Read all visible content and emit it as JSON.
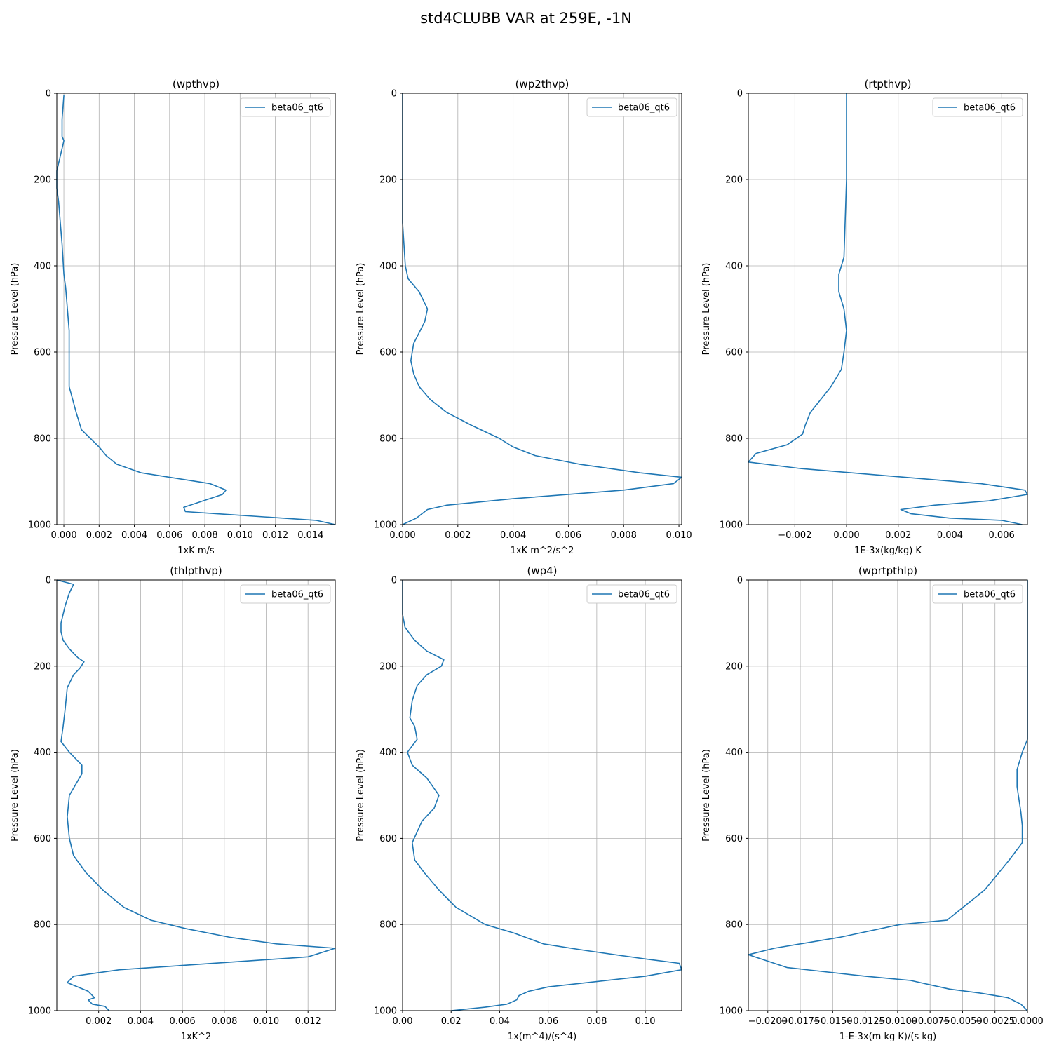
{
  "figure_title": "std4CLUBB VAR at 259E, -1N",
  "colors": {
    "line": "#1f77b4",
    "grid": "#b0b0b0",
    "axis": "#000000"
  },
  "chart_data": [
    {
      "type": "line",
      "title": "(wpthvp)",
      "xlabel": "1xK m/s",
      "ylabel": "Pressure Level (hPa)",
      "xlim": [
        -0.0004,
        0.0154
      ],
      "ylim": [
        1000,
        0
      ],
      "xticks": [
        0.0,
        0.002,
        0.004,
        0.006,
        0.008,
        0.01,
        0.012,
        0.014
      ],
      "xtick_labels": [
        "0.000",
        "0.002",
        "0.004",
        "0.006",
        "0.008",
        "0.010",
        "0.012",
        "0.014"
      ],
      "yticks": [
        0,
        200,
        400,
        600,
        800,
        1000
      ],
      "ytick_labels": [
        "0",
        "200",
        "400",
        "600",
        "800",
        "1000"
      ],
      "grid": true,
      "legend_position": "top-right",
      "series": [
        {
          "name": "beta06_qt6",
          "x": [
            0.0,
            -0.0001,
            -0.0001,
            0.0,
            -0.0004,
            -0.0004,
            -0.0003,
            -0.0001,
            0.0,
            0.0001,
            0.0002,
            0.0003,
            0.0003,
            0.0003,
            0.0003,
            0.0005,
            0.0007,
            0.001,
            0.002,
            0.0024,
            0.003,
            0.0044,
            0.0083,
            0.0092,
            0.009,
            0.0068,
            0.0069,
            0.0087,
            0.0143,
            0.0154
          ],
          "y": [
            5,
            60,
            100,
            110,
            180,
            220,
            250,
            350,
            420,
            450,
            500,
            550,
            600,
            650,
            680,
            710,
            740,
            780,
            820,
            840,
            860,
            880,
            905,
            920,
            930,
            960,
            970,
            975,
            990,
            1000
          ]
        }
      ]
    },
    {
      "type": "line",
      "title": "(wp2thvp)",
      "xlabel": "1xK m^2/s^2",
      "ylabel": "Pressure Level (hPa)",
      "xlim": [
        0.0,
        0.0101
      ],
      "ylim": [
        1000,
        0
      ],
      "xticks": [
        0.0,
        0.002,
        0.004,
        0.006,
        0.008,
        0.01
      ],
      "xtick_labels": [
        "0.000",
        "0.002",
        "0.004",
        "0.006",
        "0.008",
        "0.010"
      ],
      "yticks": [
        0,
        200,
        400,
        600,
        800,
        1000
      ],
      "ytick_labels": [
        "0",
        "200",
        "400",
        "600",
        "800",
        "1000"
      ],
      "grid": true,
      "legend_position": "top-right",
      "series": [
        {
          "name": "beta06_qt6",
          "x": [
            0.0,
            0.0,
            0.0,
            0.0001,
            0.0002,
            0.0006,
            0.0009,
            0.0008,
            0.0004,
            0.0003,
            0.0004,
            0.0006,
            0.001,
            0.0016,
            0.0025,
            0.0035,
            0.004,
            0.0048,
            0.0064,
            0.0086,
            0.0101,
            0.0098,
            0.008,
            0.004,
            0.0016,
            0.0009,
            0.0005,
            0.0
          ],
          "y": [
            0,
            200,
            300,
            400,
            430,
            460,
            500,
            530,
            580,
            620,
            650,
            680,
            710,
            740,
            770,
            800,
            820,
            840,
            860,
            880,
            890,
            905,
            920,
            940,
            955,
            965,
            985,
            1000
          ]
        }
      ]
    },
    {
      "type": "line",
      "title": "(rtpthvp)",
      "xlabel": "1E-3x(kg/kg) K",
      "ylabel": "Pressure Level (hPa)",
      "xlim": [
        -0.0038,
        0.007
      ],
      "ylim": [
        1000,
        0
      ],
      "xticks": [
        -0.002,
        0.0,
        0.002,
        0.004,
        0.006
      ],
      "xtick_labels": [
        "−0.002",
        "0.000",
        "0.002",
        "0.004",
        "0.006"
      ],
      "yticks": [
        0,
        200,
        400,
        600,
        800,
        1000
      ],
      "ytick_labels": [
        "0",
        "200",
        "400",
        "600",
        "800",
        "1000"
      ],
      "grid": true,
      "legend_position": "top-right",
      "series": [
        {
          "name": "beta06_qt6",
          "x": [
            0.0,
            0.0,
            0.0,
            -0.0001,
            -0.0003,
            -0.0003,
            -0.0001,
            0.0,
            -0.0001,
            -0.0002,
            -0.0006,
            -0.001,
            -0.0014,
            -0.0016,
            -0.0017,
            -0.0023,
            -0.0035,
            -0.0038,
            -0.0018,
            0.0052,
            0.0069,
            0.007,
            0.0055,
            0.0034,
            0.0021,
            0.0025,
            0.004,
            0.006,
            0.0068
          ],
          "y": [
            0,
            100,
            200,
            380,
            420,
            460,
            500,
            550,
            600,
            640,
            680,
            710,
            740,
            770,
            790,
            815,
            835,
            855,
            870,
            905,
            920,
            930,
            945,
            955,
            965,
            975,
            985,
            990,
            1000
          ]
        }
      ]
    },
    {
      "type": "line",
      "title": "(thlpthvp)",
      "xlabel": "1xK^2",
      "ylabel": "Pressure Level (hPa)",
      "xlim": [
        0.0,
        0.0133
      ],
      "ylim": [
        1000,
        0
      ],
      "xticks": [
        0.002,
        0.004,
        0.006,
        0.008,
        0.01,
        0.012
      ],
      "xtick_labels": [
        "0.002",
        "0.004",
        "0.006",
        "0.008",
        "0.010",
        "0.012"
      ],
      "yticks": [
        0,
        200,
        400,
        600,
        800,
        1000
      ],
      "ytick_labels": [
        "0",
        "200",
        "400",
        "600",
        "800",
        "1000"
      ],
      "grid": true,
      "legend_position": "top-right",
      "series": [
        {
          "name": "beta06_qt6",
          "x": [
            0.0,
            0.0008,
            0.0006,
            0.0004,
            0.0002,
            0.0002,
            0.0003,
            0.0006,
            0.001,
            0.0013,
            0.0011,
            0.0008,
            0.0005,
            0.0004,
            0.0003,
            0.0002,
            0.0006,
            0.0012,
            0.0012,
            0.0006,
            0.0005,
            0.0006,
            0.0008,
            0.0014,
            0.0022,
            0.0032,
            0.0045,
            0.0062,
            0.0083,
            0.0105,
            0.0133,
            0.012,
            0.003,
            0.0008,
            0.0005,
            0.0015,
            0.0018,
            0.0015,
            0.0017,
            0.0023,
            0.0025
          ],
          "y": [
            0,
            10,
            30,
            60,
            100,
            120,
            140,
            160,
            180,
            190,
            205,
            220,
            250,
            300,
            340,
            375,
            400,
            430,
            450,
            500,
            550,
            600,
            640,
            680,
            720,
            760,
            790,
            810,
            830,
            845,
            855,
            875,
            905,
            920,
            935,
            955,
            970,
            975,
            985,
            990,
            1000
          ]
        }
      ]
    },
    {
      "type": "line",
      "title": "(wp4)",
      "xlabel": "1x(m^4)/(s^4)",
      "ylabel": "Pressure Level (hPa)",
      "xlim": [
        0.0,
        0.115
      ],
      "ylim": [
        1000,
        0
      ],
      "xticks": [
        0.0,
        0.02,
        0.04,
        0.06,
        0.08,
        0.1
      ],
      "xtick_labels": [
        "0.00",
        "0.02",
        "0.04",
        "0.06",
        "0.08",
        "0.10"
      ],
      "yticks": [
        0,
        200,
        400,
        600,
        800,
        1000
      ],
      "ytick_labels": [
        "0",
        "200",
        "400",
        "600",
        "800",
        "1000"
      ],
      "grid": true,
      "legend_position": "top-right",
      "series": [
        {
          "name": "beta06_qt6",
          "x": [
            0.0,
            0.0,
            0.001,
            0.005,
            0.01,
            0.017,
            0.016,
            0.01,
            0.006,
            0.004,
            0.003,
            0.005,
            0.006,
            0.004,
            0.002,
            0.004,
            0.01,
            0.015,
            0.013,
            0.008,
            0.004,
            0.005,
            0.009,
            0.015,
            0.022,
            0.034,
            0.046,
            0.058,
            0.075,
            0.1,
            0.114,
            0.115,
            0.1,
            0.06,
            0.052,
            0.048,
            0.047,
            0.043,
            0.034,
            0.02
          ],
          "y": [
            0,
            80,
            110,
            140,
            165,
            185,
            200,
            220,
            245,
            280,
            320,
            340,
            370,
            385,
            400,
            430,
            460,
            500,
            530,
            560,
            610,
            650,
            680,
            720,
            760,
            800,
            820,
            845,
            860,
            880,
            890,
            905,
            920,
            945,
            955,
            965,
            975,
            985,
            992,
            1000
          ]
        }
      ]
    },
    {
      "type": "line",
      "title": "(wprtpthlp)",
      "xlabel": "1-E-3x(m kg K)/(s kg)",
      "ylabel": "Pressure Level (hPa)",
      "xlim": [
        -0.0215,
        0.0
      ],
      "ylim": [
        1000,
        0
      ],
      "xticks": [
        -0.02,
        -0.0175,
        -0.015,
        -0.0125,
        -0.01,
        -0.0075,
        -0.005,
        -0.0025,
        0.0
      ],
      "xtick_labels": [
        "−0.0200",
        "−0.0175",
        "−0.0150",
        "−0.0125",
        "−0.0100",
        "−0.0075",
        "−0.0050",
        "−0.0025",
        "0.0000"
      ],
      "yticks": [
        0,
        200,
        400,
        600,
        800,
        1000
      ],
      "ytick_labels": [
        "0",
        "200",
        "400",
        "600",
        "800",
        "1000"
      ],
      "grid": true,
      "legend_position": "top-right",
      "series": [
        {
          "name": "beta06_qt6",
          "x": [
            0.0,
            0.0,
            0.0,
            0.0,
            -0.0004,
            -0.0008,
            -0.0008,
            -0.0005,
            -0.0004,
            -0.0004,
            -0.0014,
            -0.0033,
            -0.0062,
            -0.0098,
            -0.0145,
            -0.0195,
            -0.0215,
            -0.0185,
            -0.0125,
            -0.009,
            -0.006,
            -0.0035,
            -0.0015,
            -0.0005,
            0.0
          ],
          "y": [
            0,
            100,
            200,
            370,
            400,
            440,
            480,
            540,
            570,
            610,
            650,
            720,
            790,
            800,
            830,
            855,
            870,
            900,
            920,
            930,
            950,
            960,
            970,
            985,
            1000
          ]
        }
      ]
    }
  ]
}
